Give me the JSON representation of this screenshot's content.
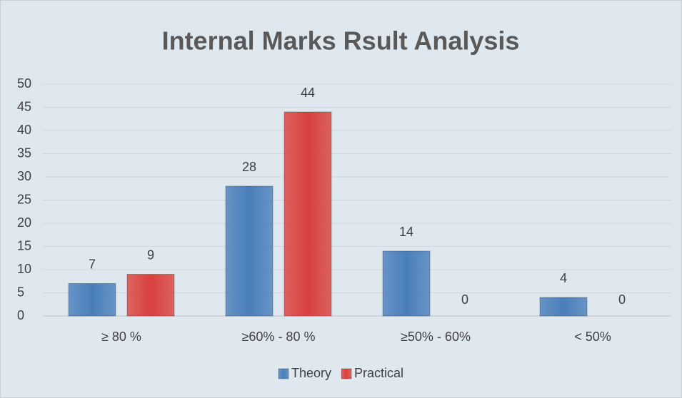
{
  "chart_data": {
    "type": "bar",
    "title": "Internal Marks Rsult Analysis",
    "categories": [
      "≥ 80 %",
      "≥60% - 80 %",
      "≥50% - 60%",
      "< 50%"
    ],
    "series": [
      {
        "name": "Theory",
        "color": "#4a7ebb",
        "values": [
          7,
          28,
          14,
          4
        ]
      },
      {
        "name": "Practical",
        "color": "#d9413c",
        "values": [
          9,
          44,
          0,
          0
        ]
      }
    ],
    "ylim": [
      0,
      50
    ],
    "yticks": [
      0,
      5,
      10,
      15,
      20,
      25,
      30,
      35,
      40,
      45,
      50
    ],
    "grid": true,
    "legend": "bottom"
  }
}
